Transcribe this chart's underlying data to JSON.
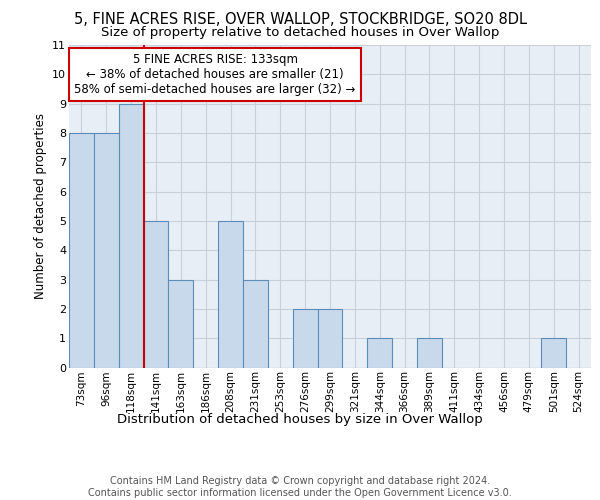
{
  "title1": "5, FINE ACRES RISE, OVER WALLOP, STOCKBRIDGE, SO20 8DL",
  "title2": "Size of property relative to detached houses in Over Wallop",
  "xlabel": "Distribution of detached houses by size in Over Wallop",
  "ylabel": "Number of detached properties",
  "categories": [
    "73sqm",
    "96sqm",
    "118sqm",
    "141sqm",
    "163sqm",
    "186sqm",
    "208sqm",
    "231sqm",
    "253sqm",
    "276sqm",
    "299sqm",
    "321sqm",
    "344sqm",
    "366sqm",
    "389sqm",
    "411sqm",
    "434sqm",
    "456sqm",
    "479sqm",
    "501sqm",
    "524sqm"
  ],
  "values": [
    8,
    8,
    9,
    5,
    3,
    0,
    5,
    3,
    0,
    2,
    2,
    0,
    1,
    0,
    1,
    0,
    0,
    0,
    0,
    1,
    0
  ],
  "bar_color": "#c9d9ec",
  "bar_edge_color": "#5b8db8",
  "red_line_x": 2.5,
  "highlight_line_color": "#cc0000",
  "annotation_text": "5 FINE ACRES RISE: 133sqm\n← 38% of detached houses are smaller (21)\n58% of semi-detached houses are larger (32) →",
  "annotation_box_color": "#ffffff",
  "annotation_box_edge_color": "#cc0000",
  "ylim": [
    0,
    11
  ],
  "yticks": [
    0,
    1,
    2,
    3,
    4,
    5,
    6,
    7,
    8,
    9,
    10,
    11
  ],
  "grid_color": "#c8d0dc",
  "bg_color": "#e8eef5",
  "footnote": "Contains HM Land Registry data © Crown copyright and database right 2024.\nContains public sector information licensed under the Open Government Licence v3.0.",
  "title1_fontsize": 10.5,
  "title2_fontsize": 9.5,
  "xlabel_fontsize": 9.5,
  "ylabel_fontsize": 8.5,
  "tick_fontsize": 7.5,
  "annotation_fontsize": 8.5,
  "footnote_fontsize": 7.0
}
